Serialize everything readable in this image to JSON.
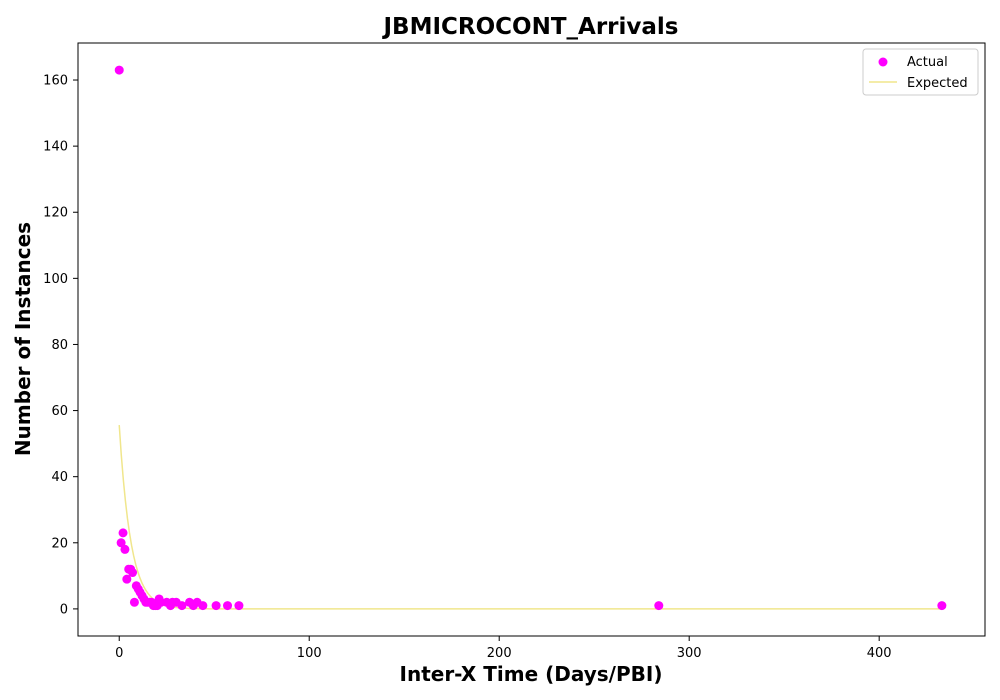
{
  "chart_data": {
    "type": "scatter",
    "title": "JBMICROCONT_Arrivals",
    "xlabel": "Inter-X Time (Days/PBI)",
    "ylabel": "Number of Instances",
    "xlim": [
      -21.7,
      455.7
    ],
    "ylim": [
      -8.2,
      171.2
    ],
    "xticks": [
      0,
      100,
      200,
      300,
      400
    ],
    "yticks": [
      0,
      20,
      40,
      60,
      80,
      100,
      120,
      140,
      160
    ],
    "legend_position": "top-right",
    "grid": false,
    "series": [
      {
        "name": "Actual",
        "kind": "scatter",
        "color": "#ff00ff",
        "points": [
          [
            0,
            163
          ],
          [
            1,
            20
          ],
          [
            2,
            23
          ],
          [
            3,
            18
          ],
          [
            4,
            9
          ],
          [
            5,
            12
          ],
          [
            6,
            12
          ],
          [
            7,
            11
          ],
          [
            8,
            2
          ],
          [
            9,
            7
          ],
          [
            10,
            6
          ],
          [
            11,
            5
          ],
          [
            12,
            4
          ],
          [
            13,
            3
          ],
          [
            14,
            2
          ],
          [
            15,
            2
          ],
          [
            16,
            2
          ],
          [
            17,
            2
          ],
          [
            18,
            1
          ],
          [
            19,
            1
          ],
          [
            20,
            1
          ],
          [
            21,
            3
          ],
          [
            22,
            2
          ],
          [
            25,
            2
          ],
          [
            27,
            1
          ],
          [
            28,
            2
          ],
          [
            30,
            2
          ],
          [
            33,
            1
          ],
          [
            37,
            2
          ],
          [
            39,
            1
          ],
          [
            41,
            2
          ],
          [
            44,
            1
          ],
          [
            51,
            1
          ],
          [
            57,
            1
          ],
          [
            63,
            1
          ],
          [
            284,
            1
          ],
          [
            433,
            1
          ]
        ]
      },
      {
        "name": "Expected",
        "kind": "line",
        "color": "#f0e68c",
        "model": "exponential",
        "a": 55.6,
        "rate": 0.1635,
        "x_range": [
          0,
          433
        ]
      }
    ]
  }
}
